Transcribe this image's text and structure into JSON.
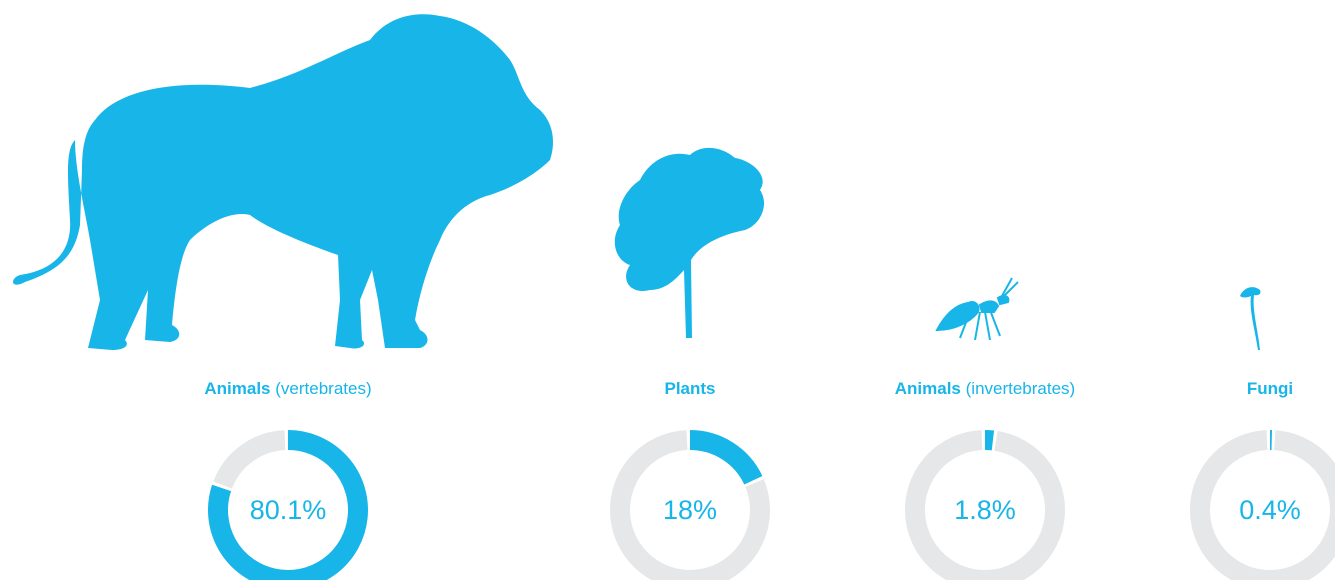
{
  "chart_data": [
    {
      "type": "donut",
      "title": "Animals",
      "subtitle": "(vertebrates)",
      "values": [
        80.1
      ],
      "value_labels": [
        "80.1%"
      ],
      "color": "#17b5e8"
    },
    {
      "type": "donut",
      "title": "Plants",
      "values": [
        18
      ],
      "value_labels": [
        "18%"
      ],
      "color": "#17b5e8"
    },
    {
      "type": "donut",
      "title": "Animals",
      "subtitle": "(invertebrates)",
      "values": [
        1.8
      ],
      "value_labels": [
        "1.8%"
      ],
      "color": "#17b5e8"
    },
    {
      "type": "donut",
      "title": "Fungi",
      "values": [
        0.4
      ],
      "value_labels": [
        "0.4%"
      ],
      "color": "#17b5e8"
    }
  ]
}
